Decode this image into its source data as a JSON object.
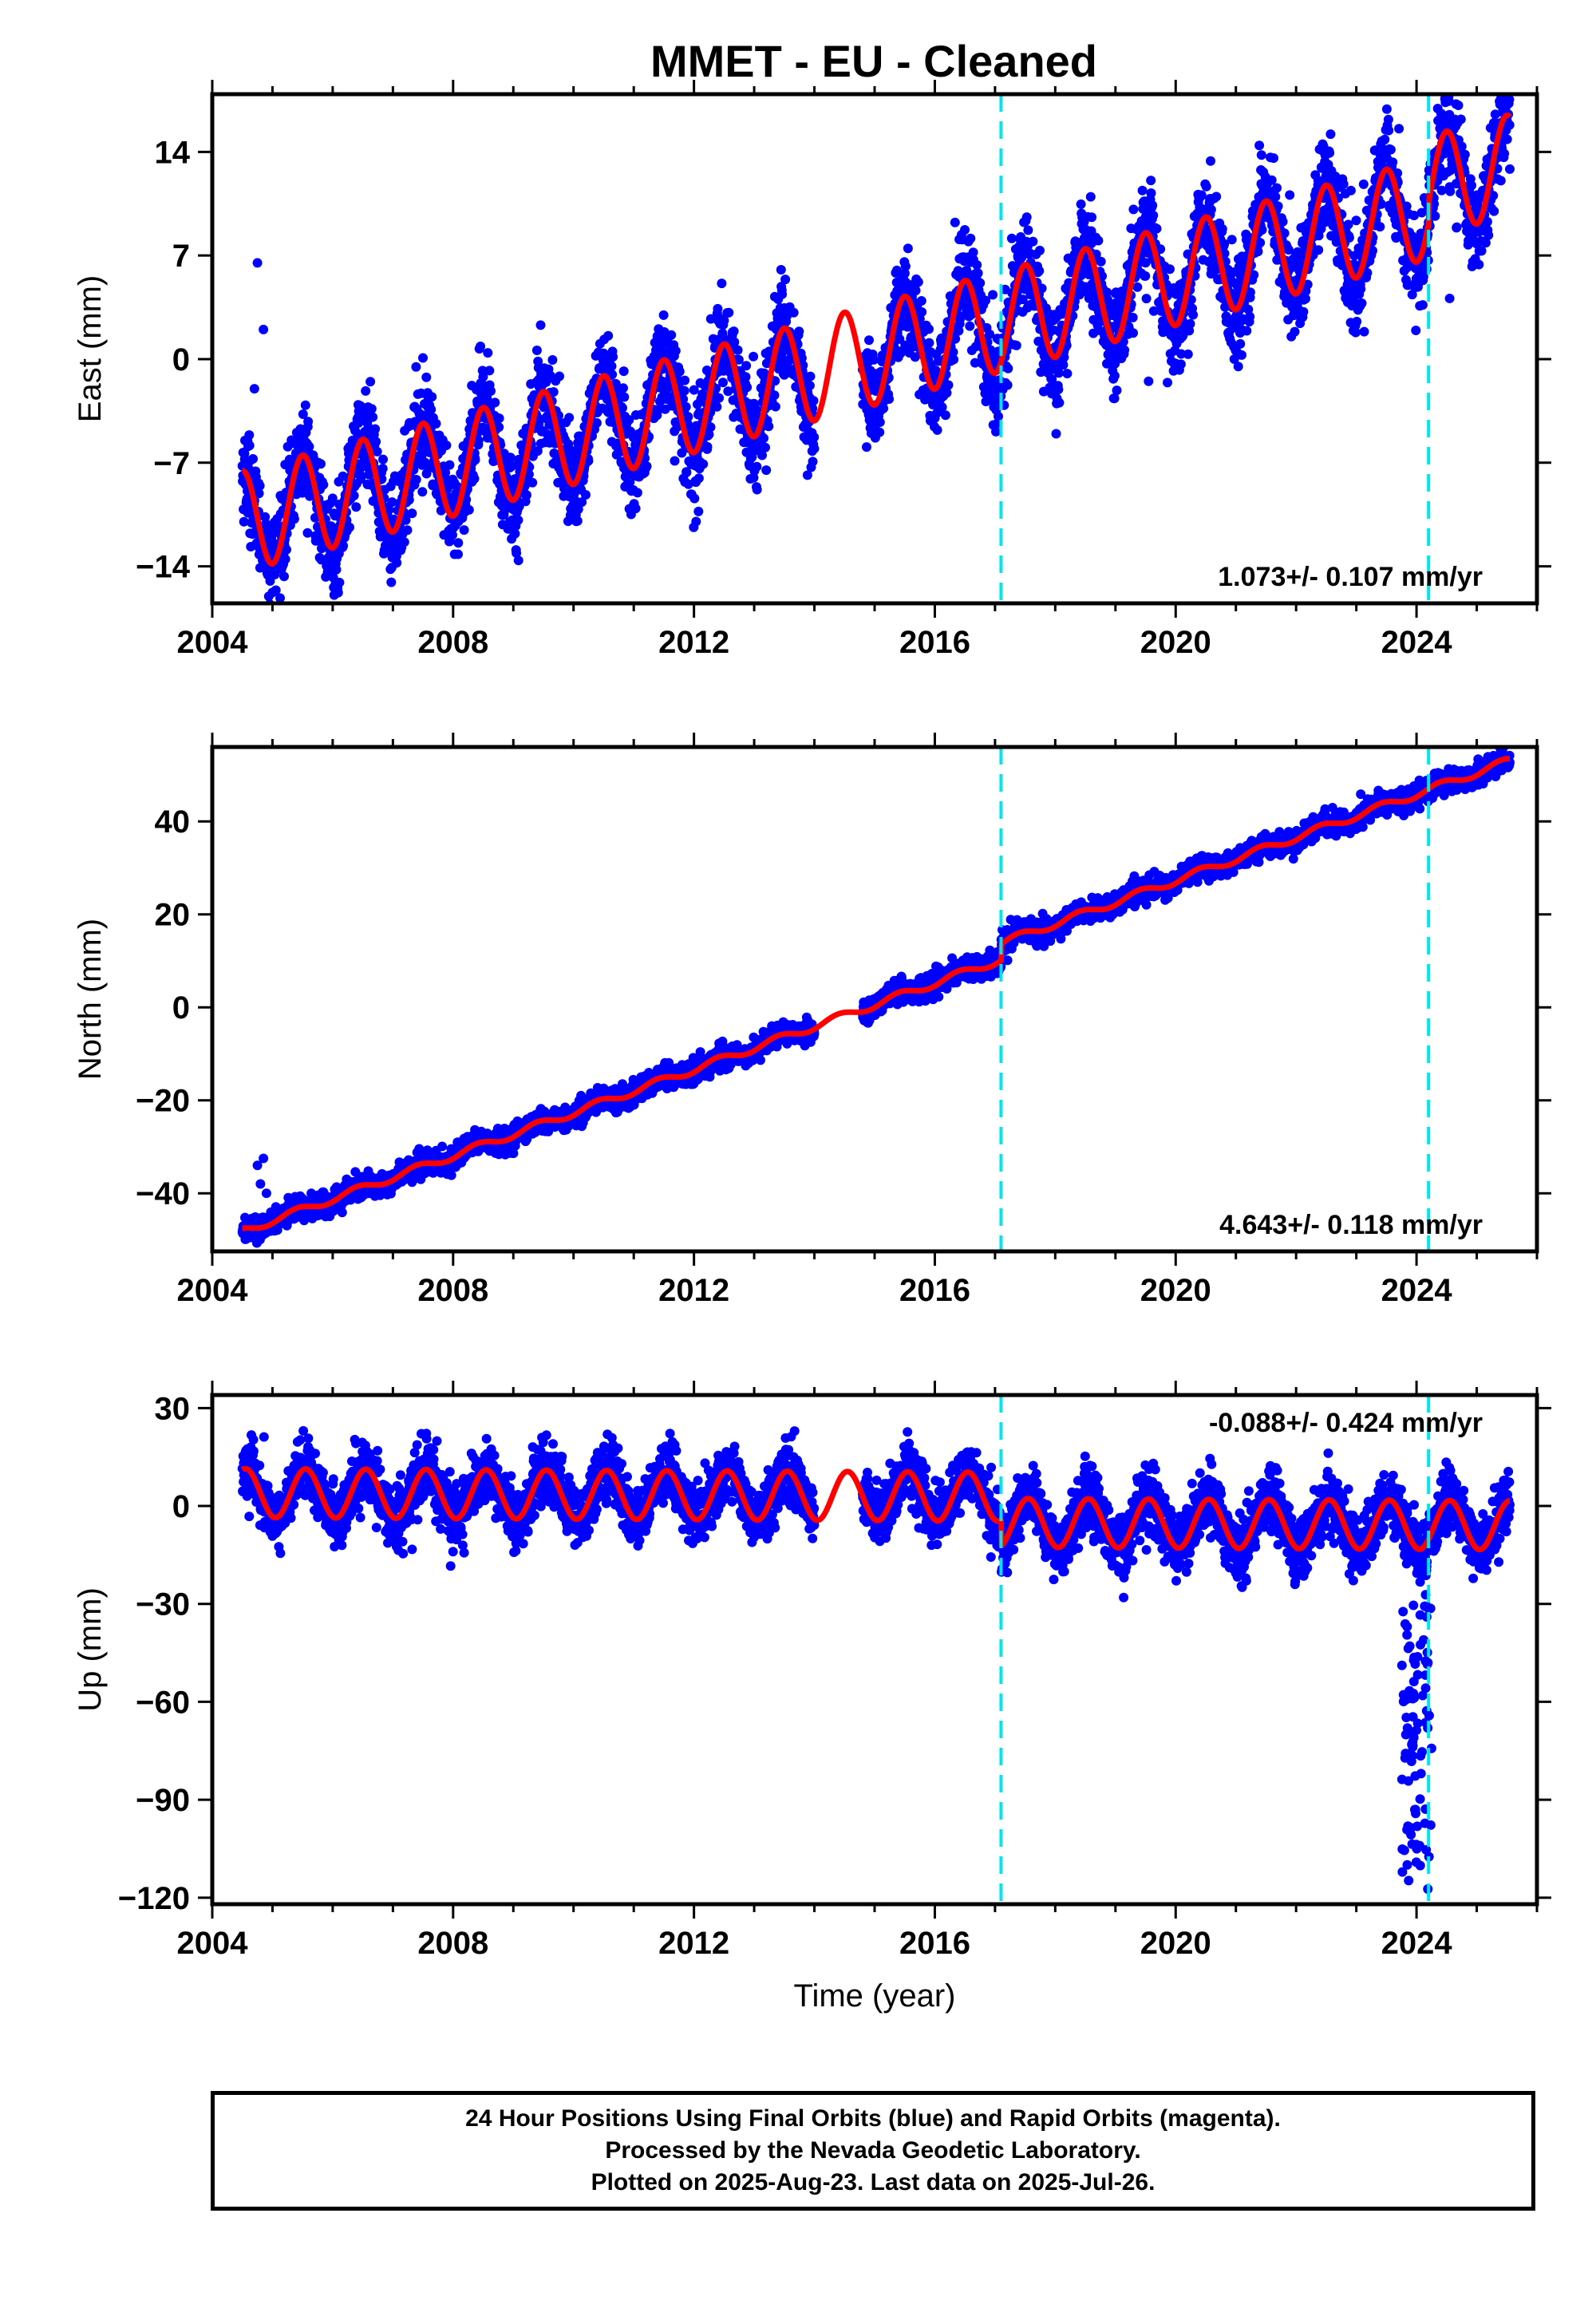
{
  "title": "MMET  - EU - Cleaned",
  "footer": {
    "line1": "24 Hour Positions Using Final Orbits (blue) and Rapid Orbits (magenta).",
    "line2": "Processed by the Nevada Geodetic Laboratory.",
    "line3": "Plotted on 2025-Aug-23. Last data on 2025-Jul-26."
  },
  "colors": {
    "data_points": "#0000ff",
    "model_fit": "#ff0000",
    "offset_lines": "#00e5ee",
    "frame": "#000000"
  },
  "chart_data": [
    {
      "type": "scatter",
      "ylabel": "East (mm)",
      "xlabel": "",
      "xlim": [
        2004,
        2026
      ],
      "ylim": [
        -16.5,
        17.9
      ],
      "xticks": [
        "2004",
        "2008",
        "2012",
        "2016",
        "2020",
        "2024"
      ],
      "yticks": [
        "-14",
        "-7",
        "0",
        "7",
        "14"
      ],
      "offset_lines_x": [
        2017.1,
        2024.2
      ],
      "rate_label": "1.073+/- 0.107 mm/yr",
      "rate_label_position": "bottom-right",
      "data_gap": [
        2014.0,
        2014.8
      ],
      "model": {
        "start": 2004.5,
        "end": 2025.55,
        "intercept_2004": -11.5,
        "rate": 1.073,
        "seasonal_amp": 3.4,
        "seasonal_peak_fraction": 0.5,
        "offsets": [
          {
            "t": 2017.1,
            "dy": 0.0
          },
          {
            "t": 2024.2,
            "dy": 1.5
          }
        ]
      },
      "scatter_sigma": 1.6,
      "outliers": [
        {
          "x": 2004.75,
          "y": 6.5
        },
        {
          "x": 2004.85,
          "y": 2.0
        },
        {
          "x": 2004.7,
          "y": -2.0
        },
        {
          "x": 2024.55,
          "y": 4.1
        },
        {
          "x": 2019.55,
          "y": -1.5
        },
        {
          "x": 2013.2,
          "y": -7.5
        }
      ]
    },
    {
      "type": "scatter",
      "ylabel": "North (mm)",
      "xlabel": "",
      "xlim": [
        2004,
        2026
      ],
      "ylim": [
        -52.5,
        56.0
      ],
      "xticks": [
        "2004",
        "2008",
        "2012",
        "2016",
        "2020",
        "2024"
      ],
      "yticks": [
        "-40",
        "-20",
        "0",
        "20",
        "40"
      ],
      "offset_lines_x": [
        2017.1,
        2024.2
      ],
      "rate_label": "4.643+/- 0.118 mm/yr",
      "rate_label_position": "bottom-right",
      "data_gap": [
        2014.0,
        2014.8
      ],
      "model": {
        "start": 2004.5,
        "end": 2025.55,
        "intercept_2004": -50.5,
        "rate": 4.643,
        "seasonal_amp": 0.8,
        "seasonal_peak_fraction": 0.4,
        "offsets": [
          {
            "t": 2017.1,
            "dy": 3.5
          },
          {
            "t": 2024.2,
            "dy": 0.0
          }
        ]
      },
      "scatter_sigma": 1.2,
      "outliers": [
        {
          "x": 2004.85,
          "y": -32.5
        },
        {
          "x": 2004.75,
          "y": -34.0
        },
        {
          "x": 2004.8,
          "y": -38.0
        },
        {
          "x": 2004.9,
          "y": -40.0
        }
      ]
    },
    {
      "type": "scatter",
      "ylabel": "Up (mm)",
      "xlabel": "Time (year)",
      "xlim": [
        2004,
        2026
      ],
      "ylim": [
        -122,
        34
      ],
      "xticks": [
        "2004",
        "2008",
        "2012",
        "2016",
        "2020",
        "2024"
      ],
      "yticks": [
        "-120",
        "-90",
        "-60",
        "-30",
        "0",
        "30"
      ],
      "offset_lines_x": [
        2017.1,
        2024.2
      ],
      "rate_label": "-0.088+/- 0.424 mm/yr",
      "rate_label_position": "top-right",
      "data_gap": [
        2014.0,
        2014.8
      ],
      "model": {
        "start": 2004.5,
        "end": 2025.55,
        "intercept_2004": 4.0,
        "rate": -0.088,
        "seasonal_amp": 7.5,
        "seasonal_peak_fraction": 0.55,
        "offsets": [
          {
            "t": 2017.1,
            "dy": -8.0
          },
          {
            "t": 2024.2,
            "dy": 0.0
          }
        ]
      },
      "scatter_sigma": 4.5,
      "outlier_cluster": {
        "x_min": 2023.75,
        "x_max": 2024.25,
        "y_min": -118,
        "y_max": -30,
        "count": 95
      }
    }
  ]
}
